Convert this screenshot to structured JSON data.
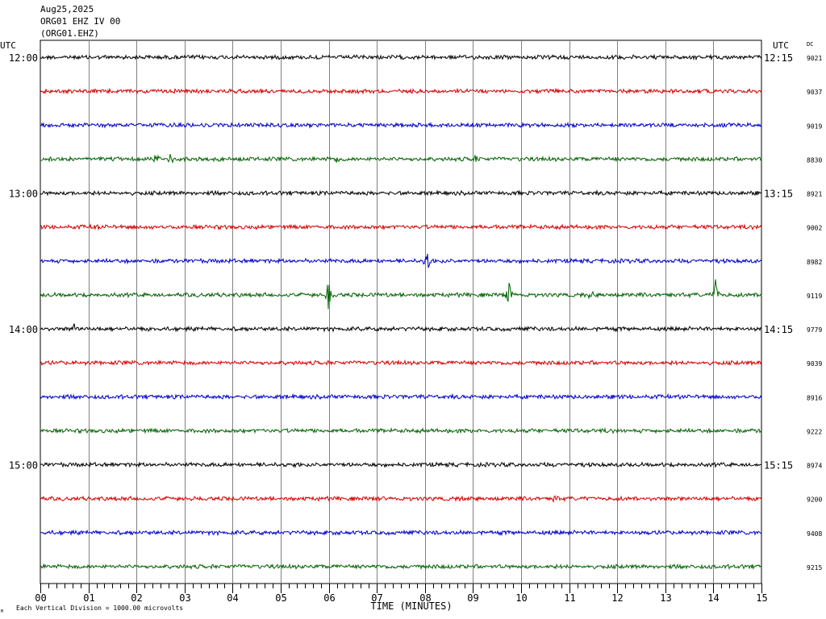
{
  "header": {
    "date": "Aug25,2025",
    "station": "ORG01 EHZ IV 00",
    "channel": "(ORG01.EHZ)"
  },
  "chart_data": {
    "type": "line",
    "title": "",
    "xlabel": "TIME (MINUTES)",
    "ylabel": "",
    "xlim": [
      0,
      15
    ],
    "x_ticks": [
      "00",
      "01",
      "02",
      "03",
      "04",
      "05",
      "06",
      "07",
      "08",
      "09",
      "10",
      "11",
      "12",
      "13",
      "14",
      "15"
    ],
    "left_axis_label": "UTC",
    "right_axis_label": "UTC",
    "dc_label": "DC",
    "left_hour_labels": [
      {
        "row": 0,
        "text": "12:00"
      },
      {
        "row": 4,
        "text": "13:00"
      },
      {
        "row": 8,
        "text": "14:00"
      },
      {
        "row": 12,
        "text": "15:00"
      }
    ],
    "right_hour_labels": [
      {
        "row": 0,
        "text": "12:15"
      },
      {
        "row": 4,
        "text": "13:15"
      },
      {
        "row": 8,
        "text": "14:15"
      },
      {
        "row": 12,
        "text": "15:15"
      }
    ],
    "trace_colors": [
      "#000000",
      "#d40000",
      "#0000c8",
      "#006400"
    ],
    "dc_values": [
      "9021",
      "9037",
      "9019",
      "8830",
      "8921",
      "9002",
      "8982",
      "9119",
      "9779",
      "9039",
      "8916",
      "9222",
      "8974",
      "9200",
      "9408",
      "9215"
    ],
    "events": [
      {
        "row": 3,
        "minute": 2.4,
        "amplitude": 0.45
      },
      {
        "row": 3,
        "minute": 2.7,
        "amplitude": 0.35
      },
      {
        "row": 3,
        "minute": 6.2,
        "amplitude": 0.3
      },
      {
        "row": 3,
        "minute": 9.05,
        "amplitude": 0.3
      },
      {
        "row": 5,
        "minute": 1.15,
        "amplitude": 0.2
      },
      {
        "row": 6,
        "minute": 8.05,
        "amplitude": 0.7
      },
      {
        "row": 7,
        "minute": 6.0,
        "amplitude": 1.0
      },
      {
        "row": 7,
        "minute": 9.75,
        "amplitude": 0.75
      },
      {
        "row": 7,
        "minute": 11.45,
        "amplitude": 0.35
      },
      {
        "row": 7,
        "minute": 14.05,
        "amplitude": 0.95
      },
      {
        "row": 8,
        "minute": 0.7,
        "amplitude": 0.3
      },
      {
        "row": 13,
        "minute": 10.7,
        "amplitude": 0.3
      }
    ],
    "footer_note": "Each Vertical Division = 1000.00 microvolts"
  }
}
